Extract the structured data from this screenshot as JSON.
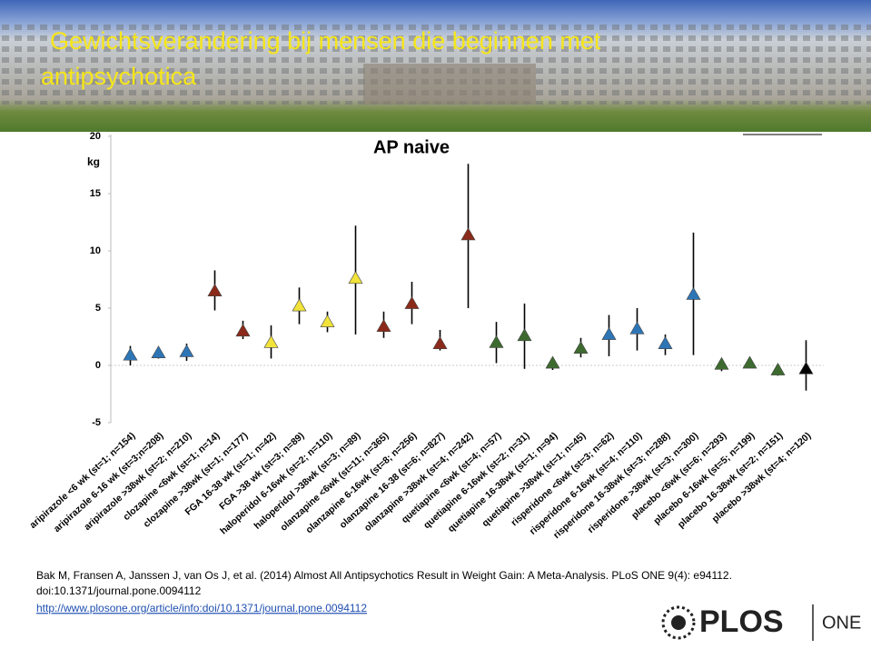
{
  "header": {
    "title": "Gewichtsverandering bij mensen die beginnen met antipsychotica"
  },
  "chart_data": {
    "type": "scatter",
    "title": "AP naive",
    "y_label": "kg",
    "categories": [
      "aripirazole <6 wk (st=1; n=154)",
      "aripirazole 6-16 wk (st=3;n=208)",
      "aripirazole >38wk (st=2; n=210)",
      "clozapine <6wk (st=1; n=14)",
      "clozapine >38wk (st=1; n=177)",
      "FGA 16-38 wk (st=1; n=42)",
      "FGA >38 wk (st=3; n=89)",
      "haloperidol 6-16wk (st=2; n=110)",
      "haloperidol >38wk (st=3; n=89)",
      "olanzapine <6wk (st=11; n=365)",
      "olanzapine 6-16wk (st=8; n=256)",
      "olanzapine 16-38 (st=6; n=827)",
      "olanzapine >38wk (st=4; n=242)",
      "quetiapine <6wk (st=4; n=57)",
      "quetiapine 6-16wk (st=2; n=31)",
      "quetiapine 16-38wk (st=1; n=94)",
      "quetiapine >38wk (st=1; n=45)",
      "risperidone <6wk (st=3; n=62)",
      "risperidone 6-16wk (st=4; n=110)",
      "risperidone 16-38wk (st=3; n=288)",
      "risperidone >38wk (st=3; n=300)",
      "placebo <6wk (st=6; n=293)",
      "placebo 6-16wk (st=5; n=199)",
      "placebo 16-38wk (st=2; n=151)",
      "placebo >38wk (st=4; n=120)"
    ],
    "series": [
      {
        "values": [
          0.8,
          1.0,
          1.1,
          6.4,
          2.9,
          1.9,
          5.1,
          3.7,
          7.5,
          3.3,
          5.3,
          1.8,
          11.3,
          1.9,
          2.5,
          0.1,
          1.4,
          2.6,
          3.1,
          1.8,
          6.1,
          0.0,
          0.1,
          -0.5,
          -0.4
        ],
        "error_high": [
          1.7,
          1.5,
          1.9,
          8.3,
          3.9,
          3.5,
          6.8,
          4.7,
          12.2,
          4.7,
          7.3,
          3.1,
          17.6,
          3.8,
          5.4,
          0.4,
          2.4,
          4.4,
          5.0,
          2.7,
          11.6,
          0.5,
          0.4,
          -0.1,
          2.2
        ],
        "error_low": [
          0.0,
          0.6,
          0.4,
          4.8,
          2.3,
          0.6,
          3.6,
          2.9,
          2.7,
          2.4,
          3.6,
          1.3,
          5.0,
          0.2,
          -0.3,
          -0.4,
          0.7,
          0.8,
          1.3,
          0.9,
          0.9,
          -0.5,
          -0.1,
          -0.9,
          -2.2
        ],
        "colors": [
          "#2e75b6",
          "#2e75b6",
          "#2e75b6",
          "#8b2a1a",
          "#8b2a1a",
          "#f2e33a",
          "#f2e33a",
          "#f2e33a",
          "#f2e33a",
          "#8b2a1a",
          "#8b2a1a",
          "#8b2a1a",
          "#8b2a1a",
          "#3d6b2f",
          "#3d6b2f",
          "#3d6b2f",
          "#3d6b2f",
          "#2e75b6",
          "#2e75b6",
          "#2e75b6",
          "#2e75b6",
          "#3d6b2f",
          "#3d6b2f",
          "#3d6b2f",
          "#000000"
        ]
      }
    ],
    "ylim": [
      -5,
      20
    ],
    "yticks": [
      -5,
      0,
      5,
      10,
      15,
      20
    ],
    "grid": false
  },
  "citation": {
    "reference": "Bak M, Fransen A, Janssen J, van Os J, et al. (2014) Almost All Antipsychotics Result in Weight Gain: A Meta-Analysis. PLoS ONE 9(4): e94112.",
    "doi": "doi:10.1371/journal.pone.0094112",
    "url": "http://www.plosone.org/article/info:doi/10.1371/journal.pone.0094112"
  },
  "logo": {
    "name": "PLOS",
    "journal": "ONE"
  }
}
